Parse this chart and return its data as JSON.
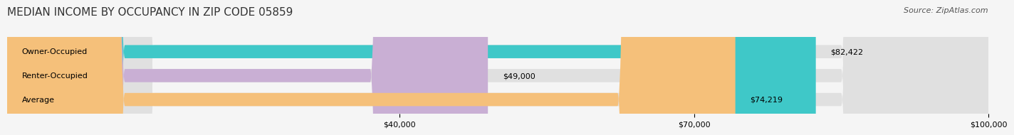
{
  "title": "MEDIAN INCOME BY OCCUPANCY IN ZIP CODE 05859",
  "source": "Source: ZipAtlas.com",
  "categories": [
    "Owner-Occupied",
    "Renter-Occupied",
    "Average"
  ],
  "values": [
    82422,
    49000,
    74219
  ],
  "value_labels": [
    "$82,422",
    "$49,000",
    "$74,219"
  ],
  "bar_colors": [
    "#3fc8c8",
    "#c9afd4",
    "#f5c07a"
  ],
  "background_colors": [
    "#e8e8e8",
    "#e8e8e8",
    "#e8e8e8"
  ],
  "xlim": [
    0,
    100000
  ],
  "xticks": [
    40000,
    70000,
    100000
  ],
  "xtick_labels": [
    "$40,000",
    "$70,000",
    "$100,000"
  ],
  "title_fontsize": 11,
  "source_fontsize": 8,
  "label_fontsize": 8,
  "value_fontsize": 8,
  "bg_color": "#f5f5f5"
}
